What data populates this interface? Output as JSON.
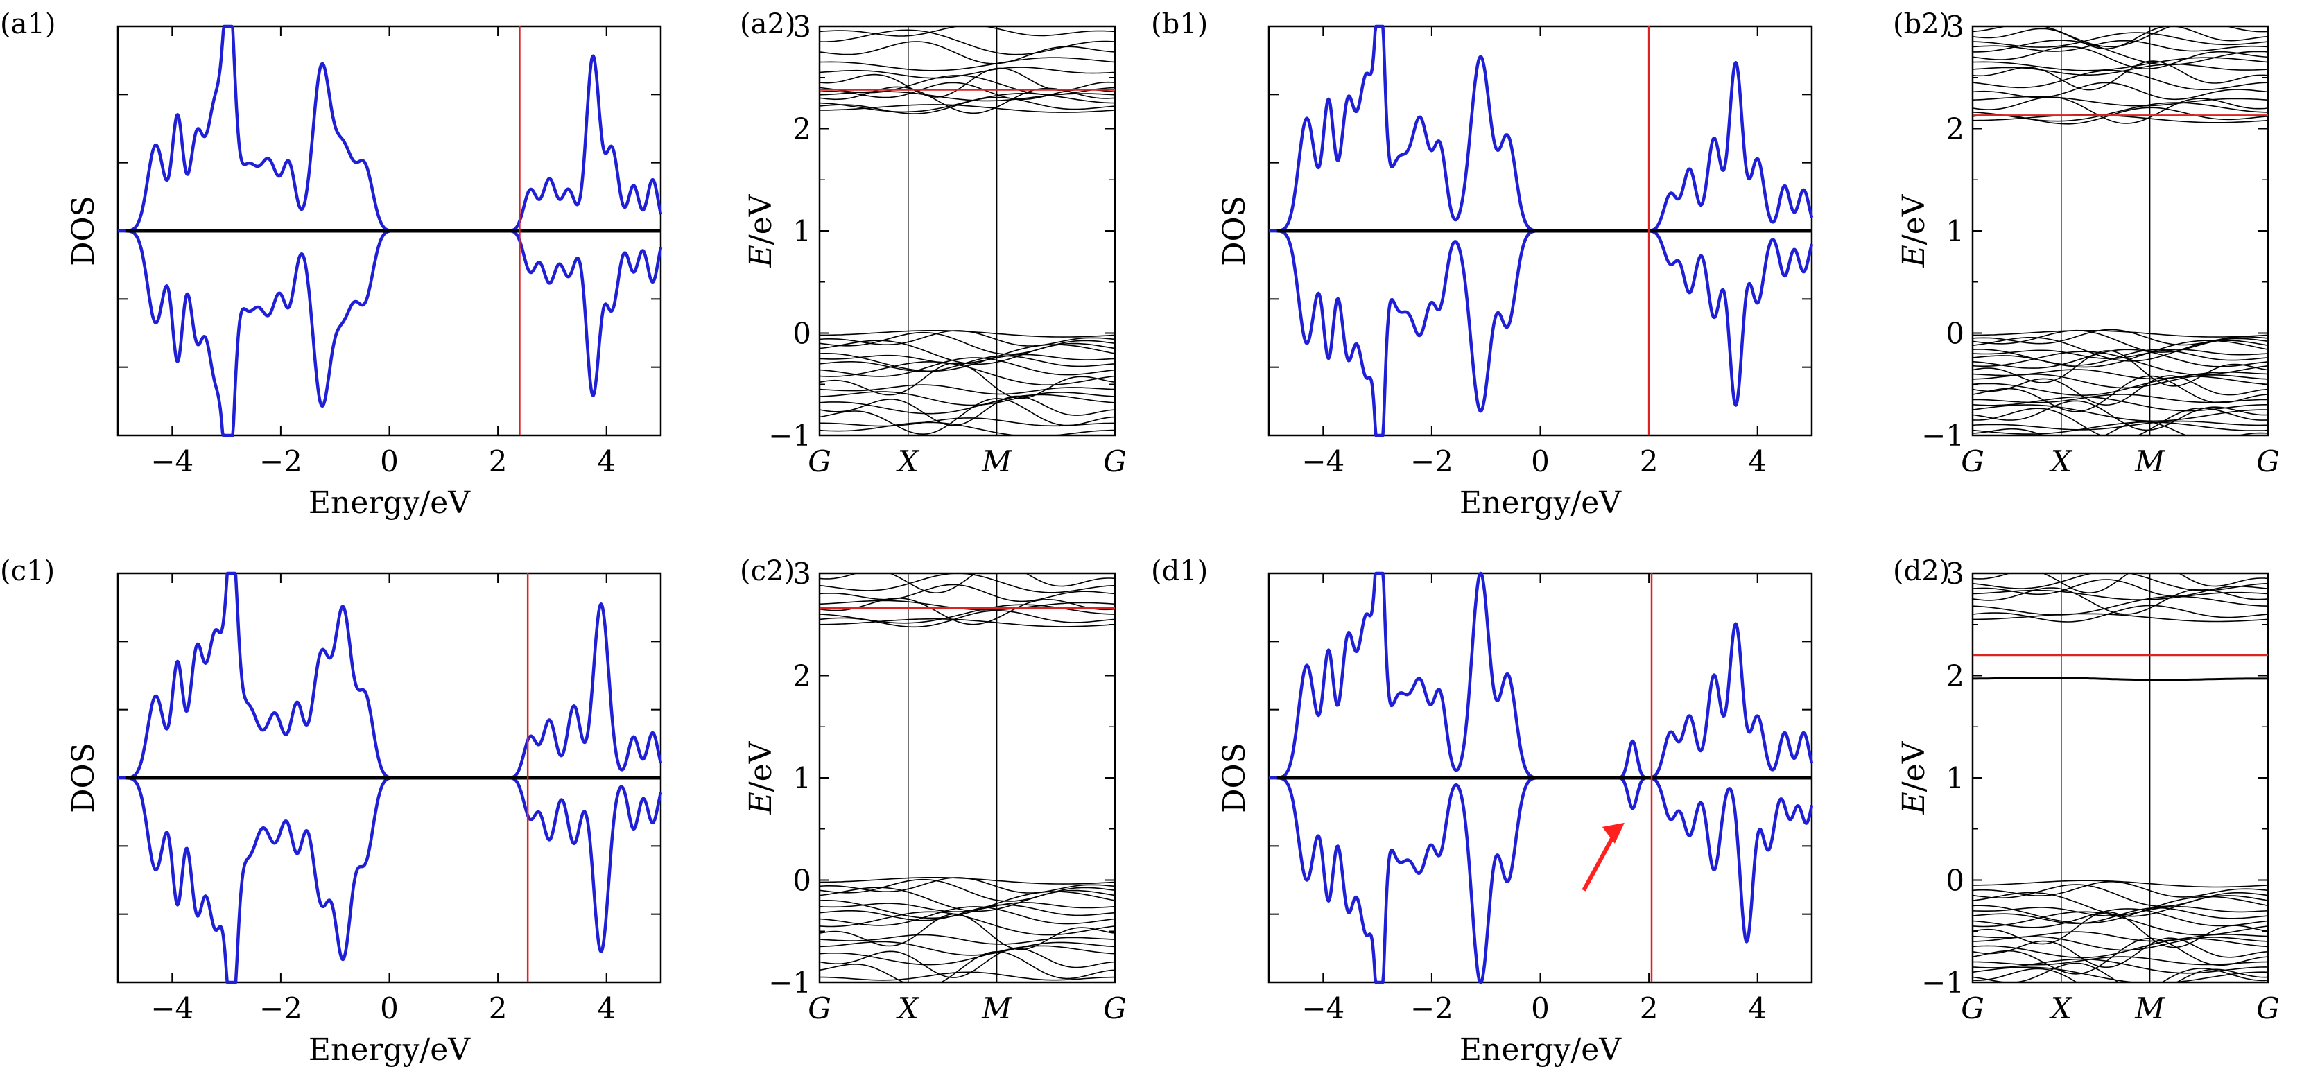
{
  "chart_data": [
    {
      "panel": "(a1)",
      "type": "line",
      "xlabel": "Energy/eV",
      "ylabel": "DOS",
      "xlim": [
        -5,
        5
      ],
      "xticks": [
        -4,
        -2,
        0,
        2,
        4
      ],
      "ylim": [
        -1,
        1
      ],
      "marker_x": 2.4,
      "gap_start": 0.0,
      "cb_onset": 2.25,
      "peaks_up": [
        [
          -4.3,
          0.42,
          0.15
        ],
        [
          -3.9,
          0.55,
          0.1
        ],
        [
          -3.55,
          0.45,
          0.12
        ],
        [
          -3.2,
          0.62,
          0.15
        ],
        [
          -2.95,
          1.0,
          0.1
        ],
        [
          -2.6,
          0.32,
          0.2
        ],
        [
          -2.2,
          0.3,
          0.15
        ],
        [
          -1.85,
          0.32,
          0.12
        ],
        [
          -1.25,
          0.78,
          0.16
        ],
        [
          -0.85,
          0.4,
          0.18
        ],
        [
          -0.45,
          0.3,
          0.15
        ],
        [
          2.6,
          0.2,
          0.12
        ],
        [
          2.95,
          0.25,
          0.12
        ],
        [
          3.3,
          0.2,
          0.12
        ],
        [
          3.75,
          0.85,
          0.12
        ],
        [
          4.1,
          0.4,
          0.12
        ],
        [
          4.5,
          0.22,
          0.1
        ],
        [
          4.85,
          0.25,
          0.1
        ]
      ],
      "peaks_down": [
        [
          -4.3,
          0.45,
          0.15
        ],
        [
          -3.9,
          0.62,
          0.1
        ],
        [
          -3.55,
          0.5,
          0.12
        ],
        [
          -3.2,
          0.7,
          0.15
        ],
        [
          -2.95,
          1.0,
          0.1
        ],
        [
          -2.6,
          0.38,
          0.2
        ],
        [
          -2.2,
          0.35,
          0.15
        ],
        [
          -1.85,
          0.35,
          0.12
        ],
        [
          -1.25,
          0.82,
          0.16
        ],
        [
          -0.85,
          0.4,
          0.18
        ],
        [
          -0.45,
          0.32,
          0.15
        ],
        [
          2.6,
          0.2,
          0.12
        ],
        [
          2.95,
          0.25,
          0.12
        ],
        [
          3.3,
          0.22,
          0.12
        ],
        [
          3.75,
          0.8,
          0.12
        ],
        [
          4.1,
          0.38,
          0.12
        ],
        [
          4.5,
          0.2,
          0.1
        ],
        [
          4.85,
          0.25,
          0.1
        ]
      ]
    },
    {
      "panel": "(a2)",
      "type": "line",
      "ylabel": "E/eV",
      "ylim": [
        -1,
        3
      ],
      "yticks": [
        -1,
        0,
        1,
        2,
        3
      ],
      "kpoints": [
        "G",
        "X",
        "M",
        "G"
      ],
      "kpos": [
        0,
        0.3,
        0.6,
        1.0
      ],
      "fermi": 2.38,
      "cb_bands": [
        2.18,
        2.22,
        2.25,
        2.3,
        2.33,
        2.36,
        2.4,
        2.45,
        2.55,
        2.65,
        2.75,
        2.85,
        2.95
      ],
      "vb_bands": [
        -0.02,
        -0.06,
        -0.1,
        -0.15,
        -0.2,
        -0.25,
        -0.3,
        -0.36,
        -0.42,
        -0.48,
        -0.55,
        -0.62,
        -0.68,
        -0.75,
        -0.82,
        -0.88,
        -0.95
      ]
    },
    {
      "panel": "(b1)",
      "type": "line",
      "xlabel": "Energy/eV",
      "ylabel": "DOS",
      "xlim": [
        -5,
        5
      ],
      "xticks": [
        -4,
        -2,
        0,
        2,
        4
      ],
      "ylim": [
        -1,
        1
      ],
      "marker_x": 2.0,
      "gap_start": 0.0,
      "cb_onset": 1.8,
      "peaks_up": [
        [
          -4.3,
          0.55,
          0.15
        ],
        [
          -3.9,
          0.62,
          0.1
        ],
        [
          -3.55,
          0.6,
          0.12
        ],
        [
          -3.2,
          0.75,
          0.15
        ],
        [
          -2.95,
          1.0,
          0.08
        ],
        [
          -2.6,
          0.35,
          0.2
        ],
        [
          -2.2,
          0.5,
          0.15
        ],
        [
          -1.85,
          0.4,
          0.12
        ],
        [
          -1.1,
          0.85,
          0.18
        ],
        [
          -0.6,
          0.45,
          0.15
        ],
        [
          2.4,
          0.18,
          0.12
        ],
        [
          2.75,
          0.3,
          0.12
        ],
        [
          3.2,
          0.45,
          0.12
        ],
        [
          3.6,
          0.82,
          0.12
        ],
        [
          4.0,
          0.35,
          0.12
        ],
        [
          4.5,
          0.22,
          0.1
        ],
        [
          4.85,
          0.2,
          0.1
        ]
      ],
      "peaks_down": [
        [
          -4.3,
          0.55,
          0.15
        ],
        [
          -3.9,
          0.6,
          0.1
        ],
        [
          -3.55,
          0.58,
          0.12
        ],
        [
          -3.2,
          0.7,
          0.15
        ],
        [
          -2.95,
          1.0,
          0.08
        ],
        [
          -2.6,
          0.38,
          0.2
        ],
        [
          -2.2,
          0.45,
          0.15
        ],
        [
          -1.85,
          0.35,
          0.12
        ],
        [
          -1.1,
          0.88,
          0.18
        ],
        [
          -0.6,
          0.45,
          0.15
        ],
        [
          2.4,
          0.16,
          0.12
        ],
        [
          2.75,
          0.3,
          0.12
        ],
        [
          3.2,
          0.42,
          0.12
        ],
        [
          3.6,
          0.85,
          0.12
        ],
        [
          4.0,
          0.35,
          0.12
        ],
        [
          4.5,
          0.22,
          0.1
        ],
        [
          4.85,
          0.2,
          0.1
        ]
      ]
    },
    {
      "panel": "(b2)",
      "type": "line",
      "ylabel": "E/eV",
      "ylim": [
        -1,
        3
      ],
      "yticks": [
        -1,
        0,
        1,
        2,
        3
      ],
      "kpoints": [
        "G",
        "X",
        "M",
        "G"
      ],
      "kpos": [
        0,
        0.3,
        0.6,
        1.0
      ],
      "fermi": 2.13,
      "cb_bands": [
        2.08,
        2.12,
        2.16,
        2.2,
        2.28,
        2.36,
        2.45,
        2.52,
        2.58,
        2.65,
        2.7,
        2.75,
        2.8,
        2.85,
        2.9,
        2.95
      ],
      "vb_bands": [
        -0.02,
        -0.05,
        -0.08,
        -0.12,
        -0.16,
        -0.2,
        -0.24,
        -0.28,
        -0.32,
        -0.36,
        -0.4,
        -0.45,
        -0.5,
        -0.55,
        -0.6,
        -0.65,
        -0.7,
        -0.75,
        -0.8,
        -0.85,
        -0.9,
        -0.95,
        -0.98
      ]
    },
    {
      "panel": "(c1)",
      "type": "line",
      "xlabel": "Energy/eV",
      "ylabel": "DOS",
      "xlim": [
        -5,
        5
      ],
      "xticks": [
        -4,
        -2,
        0,
        2,
        4
      ],
      "ylim": [
        -1,
        1
      ],
      "marker_x": 2.55,
      "gap_start": 0.0,
      "cb_onset": 2.25,
      "peaks_up": [
        [
          -4.3,
          0.4,
          0.15
        ],
        [
          -3.9,
          0.55,
          0.1
        ],
        [
          -3.55,
          0.6,
          0.12
        ],
        [
          -3.2,
          0.7,
          0.15
        ],
        [
          -2.9,
          1.0,
          0.1
        ],
        [
          -2.6,
          0.35,
          0.2
        ],
        [
          -2.1,
          0.3,
          0.15
        ],
        [
          -1.7,
          0.35,
          0.12
        ],
        [
          -1.25,
          0.6,
          0.16
        ],
        [
          -0.85,
          0.8,
          0.15
        ],
        [
          -0.45,
          0.4,
          0.15
        ],
        [
          2.6,
          0.2,
          0.12
        ],
        [
          2.95,
          0.28,
          0.12
        ],
        [
          3.4,
          0.35,
          0.12
        ],
        [
          3.9,
          0.85,
          0.14
        ],
        [
          4.5,
          0.2,
          0.1
        ],
        [
          4.85,
          0.22,
          0.1
        ]
      ],
      "peaks_down": [
        [
          -4.3,
          0.45,
          0.15
        ],
        [
          -3.9,
          0.6,
          0.1
        ],
        [
          -3.55,
          0.62,
          0.12
        ],
        [
          -3.2,
          0.72,
          0.15
        ],
        [
          -2.9,
          1.0,
          0.1
        ],
        [
          -2.6,
          0.38,
          0.2
        ],
        [
          -2.1,
          0.3,
          0.15
        ],
        [
          -1.7,
          0.35,
          0.12
        ],
        [
          -1.25,
          0.6,
          0.16
        ],
        [
          -0.85,
          0.85,
          0.15
        ],
        [
          -0.45,
          0.4,
          0.15
        ],
        [
          2.6,
          0.2,
          0.12
        ],
        [
          2.95,
          0.3,
          0.12
        ],
        [
          3.4,
          0.32,
          0.12
        ],
        [
          3.9,
          0.85,
          0.14
        ],
        [
          4.5,
          0.25,
          0.1
        ],
        [
          4.85,
          0.22,
          0.1
        ]
      ]
    },
    {
      "panel": "(c2)",
      "type": "line",
      "ylabel": "E/eV",
      "ylim": [
        -1,
        3
      ],
      "yticks": [
        -1,
        0,
        1,
        2,
        3
      ],
      "kpoints": [
        "G",
        "X",
        "M",
        "G"
      ],
      "kpos": [
        0,
        0.3,
        0.6,
        1.0
      ],
      "fermi": 2.66,
      "cb_bands": [
        2.5,
        2.55,
        2.6,
        2.65,
        2.7,
        2.8,
        2.88,
        2.95
      ],
      "vb_bands": [
        -0.02,
        -0.06,
        -0.1,
        -0.15,
        -0.2,
        -0.26,
        -0.32,
        -0.38,
        -0.45,
        -0.52,
        -0.58,
        -0.65,
        -0.72,
        -0.8,
        -0.88,
        -0.95
      ]
    },
    {
      "panel": "(d1)",
      "type": "line",
      "xlabel": "Energy/eV",
      "ylabel": "DOS",
      "xlim": [
        -5,
        5
      ],
      "xticks": [
        -4,
        -2,
        0,
        2,
        4
      ],
      "ylim": [
        -1,
        1
      ],
      "marker_x": 2.05,
      "gap_start": 0.0,
      "cb_onset": 2.0,
      "arrow_color": "#ff2020",
      "peaks_up": [
        [
          -4.3,
          0.55,
          0.15
        ],
        [
          -3.9,
          0.6,
          0.1
        ],
        [
          -3.55,
          0.65,
          0.12
        ],
        [
          -3.2,
          0.78,
          0.15
        ],
        [
          -2.95,
          1.0,
          0.08
        ],
        [
          -2.6,
          0.4,
          0.2
        ],
        [
          -2.2,
          0.42,
          0.15
        ],
        [
          -1.85,
          0.4,
          0.12
        ],
        [
          -1.1,
          1.0,
          0.16
        ],
        [
          -0.6,
          0.5,
          0.15
        ],
        [
          1.7,
          0.18,
          0.08
        ],
        [
          2.4,
          0.22,
          0.12
        ],
        [
          2.75,
          0.3,
          0.12
        ],
        [
          3.2,
          0.5,
          0.12
        ],
        [
          3.6,
          0.75,
          0.12
        ],
        [
          4.0,
          0.3,
          0.12
        ],
        [
          4.5,
          0.22,
          0.1
        ],
        [
          4.85,
          0.22,
          0.1
        ]
      ],
      "peaks_down": [
        [
          -4.3,
          0.5,
          0.15
        ],
        [
          -3.9,
          0.58,
          0.1
        ],
        [
          -3.55,
          0.6,
          0.12
        ],
        [
          -3.2,
          0.75,
          0.15
        ],
        [
          -2.95,
          1.0,
          0.08
        ],
        [
          -2.6,
          0.4,
          0.2
        ],
        [
          -2.2,
          0.4,
          0.15
        ],
        [
          -1.85,
          0.35,
          0.12
        ],
        [
          -1.1,
          1.0,
          0.16
        ],
        [
          -0.6,
          0.5,
          0.15
        ],
        [
          1.7,
          0.15,
          0.08
        ],
        [
          2.4,
          0.2,
          0.12
        ],
        [
          2.75,
          0.28,
          0.12
        ],
        [
          3.2,
          0.45,
          0.12
        ],
        [
          3.8,
          0.8,
          0.12
        ],
        [
          4.2,
          0.35,
          0.12
        ],
        [
          4.6,
          0.2,
          0.1
        ],
        [
          4.9,
          0.22,
          0.1
        ]
      ]
    },
    {
      "panel": "(d2)",
      "type": "line",
      "ylabel": "E/eV",
      "ylim": [
        -1,
        3
      ],
      "yticks": [
        -1,
        0,
        1,
        2,
        3
      ],
      "kpoints": [
        "G",
        "X",
        "M",
        "G"
      ],
      "kpos": [
        0,
        0.3,
        0.6,
        1.0
      ],
      "fermi": 2.2,
      "defect_band": 1.97,
      "cb_bands": [
        2.55,
        2.6,
        2.68,
        2.75,
        2.8,
        2.85,
        2.9,
        2.95
      ],
      "vb_bands": [
        -0.05,
        -0.1,
        -0.15,
        -0.2,
        -0.25,
        -0.3,
        -0.35,
        -0.4,
        -0.45,
        -0.5,
        -0.55,
        -0.6,
        -0.65,
        -0.7,
        -0.75,
        -0.8,
        -0.85,
        -0.9,
        -0.95,
        -0.98
      ]
    }
  ],
  "colors": {
    "dos": "#1f1fd6",
    "marker": "#dd2222",
    "axis": "#000000",
    "band": "#000000"
  }
}
